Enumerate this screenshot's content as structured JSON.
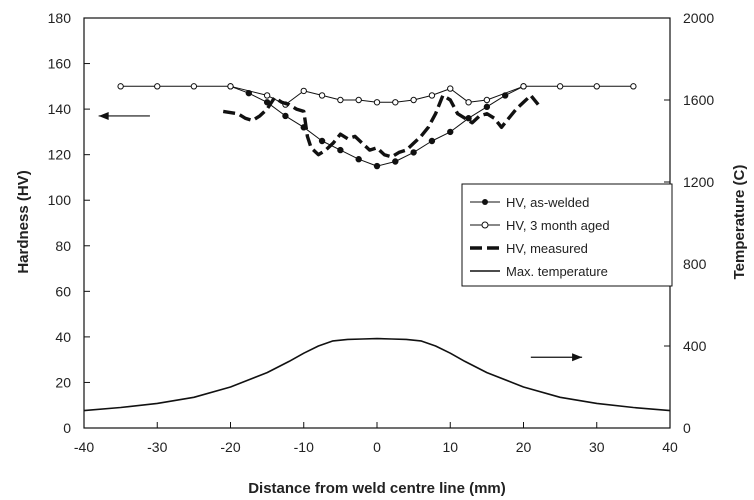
{
  "chart_data": {
    "type": "line",
    "xlabel": "Distance from weld centre line (mm)",
    "ylabel_left": "Hardness (HV)",
    "ylabel_right": "Temperature (C)",
    "xlim": [
      -40,
      40
    ],
    "ylim_left": [
      0,
      180
    ],
    "ylim_right": [
      0,
      2000
    ],
    "xticks": [
      -40,
      -30,
      -20,
      -10,
      0,
      10,
      20,
      30,
      40
    ],
    "yticks_left": [
      0,
      20,
      40,
      60,
      80,
      100,
      120,
      140,
      160,
      180
    ],
    "yticks_right": [
      0,
      400,
      800,
      1200,
      1600,
      2000
    ],
    "grid": false,
    "legend_position": "right",
    "colors": {
      "line": "#111111",
      "open_marker_fill": "#ffffff"
    },
    "series": [
      {
        "name": "HV, as-welded",
        "axis": "left",
        "style": "thin-line-filled-markers",
        "x": [
          -20,
          -17.5,
          -15,
          -12.5,
          -10,
          -7.5,
          -5,
          -2.5,
          0,
          2.5,
          5,
          7.5,
          10,
          12.5,
          15,
          17.5,
          20
        ],
        "y": [
          150,
          147,
          143,
          137,
          132,
          126,
          122,
          118,
          115,
          117,
          121,
          126,
          130,
          136,
          141,
          146,
          150
        ]
      },
      {
        "name": "HV, 3 month aged",
        "axis": "left",
        "style": "thin-line-open-markers",
        "x": [
          -35,
          -30,
          -25,
          -20,
          -15,
          -12.5,
          -10,
          -7.5,
          -5,
          -2.5,
          0,
          2.5,
          5,
          7.5,
          10,
          12.5,
          15,
          20,
          25,
          30,
          35
        ],
        "y": [
          150,
          150,
          150,
          150,
          146,
          142,
          148,
          146,
          144,
          144,
          143,
          143,
          144,
          146,
          149,
          143,
          144,
          150,
          150,
          150,
          150
        ]
      },
      {
        "name": "HV, measured",
        "axis": "left",
        "style": "thick-dashed",
        "x": [
          -21,
          -19,
          -18,
          -17,
          -16,
          -15,
          -14,
          -13,
          -12,
          -11,
          -10,
          -9.5,
          -9,
          -8,
          -7,
          -6,
          -5,
          -4,
          -3,
          -2,
          -1,
          0,
          1,
          2,
          3,
          4,
          5,
          6,
          7,
          8,
          9,
          10,
          11,
          12,
          13,
          14,
          15,
          16,
          17,
          18,
          19,
          20,
          21,
          22
        ],
        "y": [
          139,
          138,
          136,
          135,
          137,
          140,
          145,
          143,
          142,
          140,
          139,
          128,
          123,
          120,
          122,
          125,
          129,
          127,
          128,
          125,
          122,
          123,
          120,
          119,
          121,
          122,
          125,
          128,
          132,
          138,
          146,
          144,
          138,
          136,
          134,
          137,
          138,
          136,
          132,
          136,
          140,
          143,
          146,
          142
        ]
      },
      {
        "name": "Max. temperature",
        "axis": "right",
        "style": "solid",
        "x": [
          -40,
          -35,
          -30,
          -25,
          -20,
          -15,
          -12,
          -10,
          -8,
          -6,
          -4,
          -2,
          0,
          2,
          4,
          6,
          8,
          10,
          12,
          15,
          20,
          25,
          30,
          35,
          40
        ],
        "y": [
          85,
          100,
          120,
          150,
          200,
          270,
          325,
          365,
          400,
          425,
          432,
          434,
          436,
          434,
          432,
          425,
          400,
          365,
          325,
          270,
          200,
          150,
          120,
          100,
          85
        ]
      }
    ],
    "annotations": [
      {
        "type": "arrow",
        "direction": "left",
        "axis": "left",
        "x_from": -31,
        "x_to": -38,
        "y": 137
      },
      {
        "type": "arrow",
        "direction": "right",
        "axis": "right",
        "x_from": 21,
        "x_to": 28,
        "y": 345
      }
    ]
  }
}
